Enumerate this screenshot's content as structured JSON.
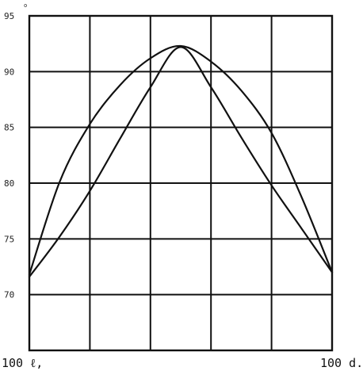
{
  "chart_data": {
    "type": "line",
    "x_range": [
      0,
      100
    ],
    "ylim": [
      65,
      95
    ],
    "y_ticks": [
      {
        "value": 95,
        "label": "95"
      },
      {
        "value": 90,
        "label": "90"
      },
      {
        "value": 85,
        "label": "85"
      },
      {
        "value": 80,
        "label": "80"
      },
      {
        "value": 75,
        "label": "75"
      },
      {
        "value": 70,
        "label": "70"
      }
    ],
    "y_unit_mark": "o",
    "x_tick_labels": {
      "left": "100 ℓ,",
      "right": "100 d."
    },
    "grid": true,
    "series": [
      {
        "x": [
          0,
          10,
          20,
          30,
          40,
          50,
          60,
          70,
          80,
          90,
          100
        ],
        "y": [
          71.8,
          80.1,
          85.3,
          88.8,
          91.2,
          92.3,
          90.9,
          88.3,
          84.5,
          78.7,
          72.0
        ]
      },
      {
        "x": [
          0,
          10,
          20,
          30,
          40,
          50,
          60,
          70,
          80,
          90,
          100
        ],
        "y": [
          71.6,
          75.2,
          79.3,
          84.0,
          88.6,
          92.2,
          88.6,
          84.1,
          79.8,
          75.9,
          72.0
        ]
      }
    ]
  }
}
